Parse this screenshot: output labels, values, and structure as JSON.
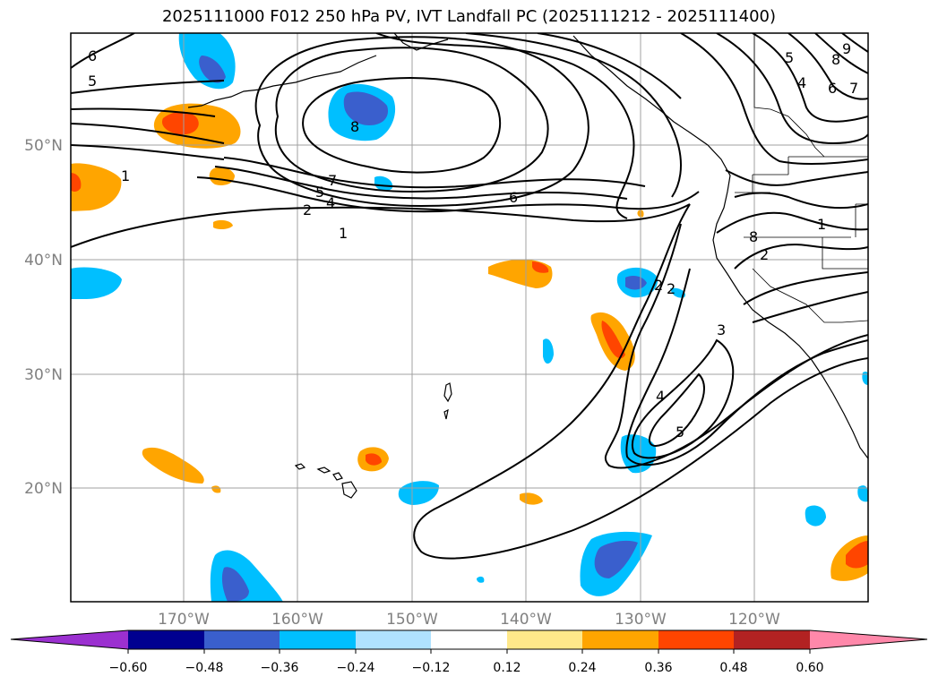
{
  "title": "2025111000 F012 250 hPa PV, IVT Landfall PC (2025111212 - 2025111400)",
  "map": {
    "lon_labels": [
      "170°W",
      "160°W",
      "150°W",
      "140°W",
      "130°W",
      "120°W"
    ],
    "lat_labels": [
      "50°N",
      "40°N",
      "30°N",
      "20°N"
    ],
    "gridline_color": "#a0a0a0"
  },
  "contour_labels": [
    "6",
    "5",
    "1",
    "8",
    "7",
    "5",
    "4",
    "2",
    "1",
    "6",
    "5",
    "4",
    "8",
    "6",
    "7",
    "9",
    "8",
    "1",
    "2",
    "2",
    "2",
    "3",
    "4",
    "5"
  ],
  "colorbar": {
    "ticks": [
      "−0.60",
      "−0.48",
      "−0.36",
      "−0.24",
      "−0.12",
      "0.12",
      "0.24",
      "0.36",
      "0.48",
      "0.60"
    ],
    "colors": [
      "#9b30d0",
      "#000090",
      "#3a5fcd",
      "#00bfff",
      "#b0e2ff",
      "#ffffff",
      "#ffe88a",
      "#ffa500",
      "#ff4500",
      "#b22222",
      "#ff88aa"
    ]
  }
}
